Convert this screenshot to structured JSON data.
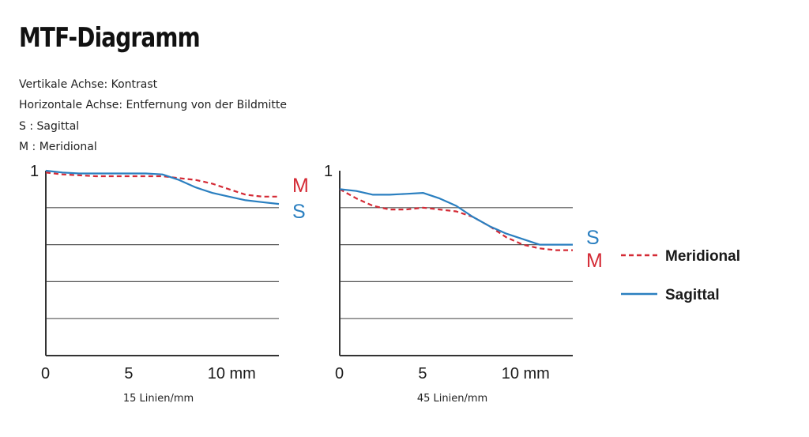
{
  "page": {
    "title": "MTF-Diagramm",
    "notes": [
      "Vertikale Achse: Kontrast",
      "Horizontale Achse: Entfernung von der Bildmitte",
      "S : Sagittal",
      "M : Meridional"
    ]
  },
  "colors": {
    "meridional": "#d42a35",
    "sagittal": "#2a7fc0",
    "grid": "#555555",
    "axis": "#333333"
  },
  "legend": {
    "meridional": "Meridional",
    "sagittal": "Sagittal"
  },
  "chart_data": [
    {
      "type": "line",
      "caption": "15 Linien/mm",
      "xlim": [
        0,
        14
      ],
      "ylim": [
        0,
        1
      ],
      "xticks": [
        {
          "v": 0,
          "label": "0"
        },
        {
          "v": 5,
          "label": "5"
        },
        {
          "v": 10,
          "label": "10 mm"
        }
      ],
      "yticks": [
        {
          "v": 1,
          "label": "1"
        }
      ],
      "grid": true,
      "end_labels_top_first": [
        "M",
        "S"
      ],
      "series": [
        {
          "key": "meridional",
          "name": "M",
          "dash": true,
          "x": [
            0,
            1,
            2,
            3,
            4,
            5,
            6,
            7,
            8,
            9,
            10,
            11,
            12,
            13,
            14
          ],
          "y": [
            0.99,
            0.98,
            0.975,
            0.97,
            0.97,
            0.97,
            0.97,
            0.97,
            0.96,
            0.95,
            0.93,
            0.9,
            0.87,
            0.86,
            0.86
          ]
        },
        {
          "key": "sagittal",
          "name": "S",
          "x": [
            0,
            1,
            2,
            3,
            4,
            5,
            6,
            7,
            8,
            9,
            10,
            11,
            12,
            13,
            14
          ],
          "y": [
            1.0,
            0.99,
            0.985,
            0.985,
            0.985,
            0.985,
            0.985,
            0.98,
            0.95,
            0.91,
            0.88,
            0.86,
            0.84,
            0.83,
            0.82
          ]
        }
      ]
    },
    {
      "type": "line",
      "caption": "45 Linien/mm",
      "xlim": [
        0,
        14
      ],
      "ylim": [
        0,
        1
      ],
      "xticks": [
        {
          "v": 0,
          "label": "0"
        },
        {
          "v": 5,
          "label": "5"
        },
        {
          "v": 10,
          "label": "10 mm"
        }
      ],
      "yticks": [
        {
          "v": 1,
          "label": "1"
        }
      ],
      "grid": true,
      "end_labels_top_first": [
        "S",
        "M"
      ],
      "series": [
        {
          "key": "meridional",
          "name": "M",
          "dash": true,
          "x": [
            0,
            1,
            2,
            3,
            4,
            5,
            6,
            7,
            8,
            9,
            10,
            11,
            12,
            13,
            14
          ],
          "y": [
            0.9,
            0.85,
            0.81,
            0.79,
            0.79,
            0.8,
            0.79,
            0.78,
            0.75,
            0.7,
            0.64,
            0.6,
            0.58,
            0.57,
            0.57
          ]
        },
        {
          "key": "sagittal",
          "name": "S",
          "x": [
            0,
            1,
            2,
            3,
            4,
            5,
            6,
            7,
            8,
            9,
            10,
            11,
            12,
            13,
            14
          ],
          "y": [
            0.9,
            0.89,
            0.87,
            0.87,
            0.875,
            0.88,
            0.85,
            0.81,
            0.75,
            0.7,
            0.66,
            0.63,
            0.6,
            0.6,
            0.6
          ]
        }
      ]
    }
  ]
}
